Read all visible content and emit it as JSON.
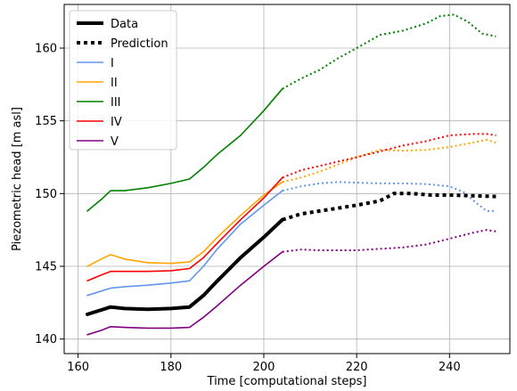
{
  "chart_data": {
    "type": "line",
    "xlabel": "Time [computational steps]",
    "ylabel": "Piezometric head [m asl]",
    "xlim": [
      157,
      253
    ],
    "ylim": [
      139,
      163
    ],
    "xticks": [
      160,
      180,
      200,
      220,
      240
    ],
    "yticks": [
      140,
      145,
      150,
      155,
      160
    ],
    "grid": true,
    "legend_position": "top-left",
    "legend": [
      {
        "label": "Data",
        "color": "#000000",
        "style": "solid-thick"
      },
      {
        "label": "Prediction",
        "color": "#000000",
        "style": "dotted-thick"
      },
      {
        "label": "I",
        "color": "#6495ed",
        "style": "solid"
      },
      {
        "label": "II",
        "color": "#ffa500",
        "style": "solid"
      },
      {
        "label": "III",
        "color": "#008000",
        "style": "solid"
      },
      {
        "label": "IV",
        "color": "#ff0000",
        "style": "solid"
      },
      {
        "label": "V",
        "color": "#800080",
        "style": "solid"
      }
    ],
    "series": [
      {
        "name": "I",
        "color": "#6495ed",
        "observed": [
          [
            162,
            143.0
          ],
          [
            165,
            143.3
          ],
          [
            167,
            143.5
          ],
          [
            170,
            143.6
          ],
          [
            175,
            143.7
          ],
          [
            180,
            143.85
          ],
          [
            184,
            144.0
          ],
          [
            187,
            145.0
          ],
          [
            190,
            146.2
          ],
          [
            195,
            147.9
          ],
          [
            200,
            149.2
          ],
          [
            204,
            150.2
          ]
        ],
        "predicted": [
          [
            204,
            150.2
          ],
          [
            208,
            150.5
          ],
          [
            212,
            150.7
          ],
          [
            216,
            150.8
          ],
          [
            220,
            150.75
          ],
          [
            225,
            150.7
          ],
          [
            230,
            150.7
          ],
          [
            235,
            150.65
          ],
          [
            240,
            150.5
          ],
          [
            243,
            150.1
          ],
          [
            246,
            149.3
          ],
          [
            248,
            148.8
          ],
          [
            250,
            148.8
          ]
        ]
      },
      {
        "name": "II",
        "color": "#ffa500",
        "observed": [
          [
            162,
            145.0
          ],
          [
            165,
            145.5
          ],
          [
            167,
            145.8
          ],
          [
            170,
            145.5
          ],
          [
            175,
            145.25
          ],
          [
            180,
            145.2
          ],
          [
            184,
            145.3
          ],
          [
            187,
            146.0
          ],
          [
            190,
            147.0
          ],
          [
            195,
            148.5
          ],
          [
            200,
            149.9
          ],
          [
            204,
            150.8
          ]
        ],
        "predicted": [
          [
            204,
            150.8
          ],
          [
            208,
            151.1
          ],
          [
            212,
            151.5
          ],
          [
            216,
            152.0
          ],
          [
            220,
            152.5
          ],
          [
            225,
            153.0
          ],
          [
            230,
            152.95
          ],
          [
            235,
            153.0
          ],
          [
            240,
            153.2
          ],
          [
            245,
            153.5
          ],
          [
            248,
            153.7
          ],
          [
            250,
            153.5
          ]
        ]
      },
      {
        "name": "III",
        "color": "#008000",
        "observed": [
          [
            162,
            148.8
          ],
          [
            165,
            149.6
          ],
          [
            167,
            150.2
          ],
          [
            170,
            150.2
          ],
          [
            175,
            150.4
          ],
          [
            180,
            150.7
          ],
          [
            184,
            151.0
          ],
          [
            187,
            151.8
          ],
          [
            190,
            152.7
          ],
          [
            195,
            154.0
          ],
          [
            200,
            155.7
          ],
          [
            204,
            157.2
          ]
        ],
        "predicted": [
          [
            204,
            157.2
          ],
          [
            208,
            157.9
          ],
          [
            212,
            158.5
          ],
          [
            216,
            159.3
          ],
          [
            220,
            160.0
          ],
          [
            225,
            160.9
          ],
          [
            230,
            161.2
          ],
          [
            235,
            161.7
          ],
          [
            238,
            162.2
          ],
          [
            241,
            162.3
          ],
          [
            244,
            161.8
          ],
          [
            247,
            161.0
          ],
          [
            250,
            160.8
          ]
        ]
      },
      {
        "name": "IV",
        "color": "#ff0000",
        "observed": [
          [
            162,
            144.0
          ],
          [
            165,
            144.4
          ],
          [
            167,
            144.65
          ],
          [
            170,
            144.65
          ],
          [
            175,
            144.65
          ],
          [
            180,
            144.7
          ],
          [
            184,
            144.85
          ],
          [
            187,
            145.6
          ],
          [
            190,
            146.6
          ],
          [
            195,
            148.2
          ],
          [
            200,
            149.7
          ],
          [
            204,
            151.1
          ]
        ],
        "predicted": [
          [
            204,
            151.1
          ],
          [
            208,
            151.6
          ],
          [
            212,
            151.9
          ],
          [
            216,
            152.2
          ],
          [
            220,
            152.5
          ],
          [
            225,
            152.9
          ],
          [
            230,
            153.3
          ],
          [
            235,
            153.6
          ],
          [
            240,
            154.0
          ],
          [
            245,
            154.1
          ],
          [
            248,
            154.1
          ],
          [
            250,
            154.0
          ]
        ]
      },
      {
        "name": "V",
        "color": "#800080",
        "observed": [
          [
            162,
            140.3
          ],
          [
            165,
            140.6
          ],
          [
            167,
            140.85
          ],
          [
            170,
            140.8
          ],
          [
            175,
            140.75
          ],
          [
            180,
            140.75
          ],
          [
            184,
            140.8
          ],
          [
            187,
            141.5
          ],
          [
            190,
            142.3
          ],
          [
            195,
            143.7
          ],
          [
            200,
            145.0
          ],
          [
            204,
            146.0
          ]
        ],
        "predicted": [
          [
            204,
            146.0
          ],
          [
            208,
            146.15
          ],
          [
            212,
            146.1
          ],
          [
            220,
            146.1
          ],
          [
            225,
            146.2
          ],
          [
            230,
            146.3
          ],
          [
            235,
            146.5
          ],
          [
            240,
            146.9
          ],
          [
            245,
            147.3
          ],
          [
            248,
            147.5
          ],
          [
            250,
            147.4
          ]
        ]
      },
      {
        "name": "Data",
        "color": "#000000",
        "observed": [
          [
            162,
            141.7
          ],
          [
            165,
            142.0
          ],
          [
            167,
            142.2
          ],
          [
            170,
            142.1
          ],
          [
            175,
            142.05
          ],
          [
            180,
            142.1
          ],
          [
            184,
            142.2
          ],
          [
            187,
            143.0
          ],
          [
            190,
            144.0
          ],
          [
            195,
            145.6
          ],
          [
            200,
            147.0
          ],
          [
            204,
            148.2
          ]
        ],
        "predicted": [
          [
            204,
            148.2
          ],
          [
            208,
            148.6
          ],
          [
            212,
            148.8
          ],
          [
            216,
            149.0
          ],
          [
            220,
            149.2
          ],
          [
            225,
            149.5
          ],
          [
            228,
            150.0
          ],
          [
            232,
            150.0
          ],
          [
            236,
            149.9
          ],
          [
            240,
            149.9
          ],
          [
            245,
            149.85
          ],
          [
            250,
            149.8
          ]
        ]
      }
    ]
  }
}
